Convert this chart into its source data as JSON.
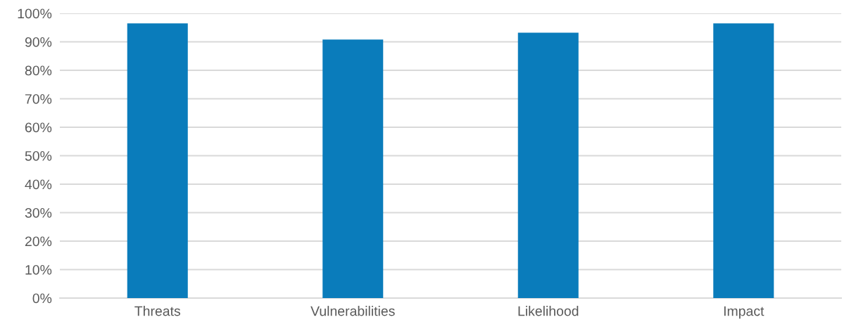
{
  "chart_data": {
    "type": "bar",
    "categories": [
      "Threats",
      "Vulnerabilities",
      "Likelihood",
      "Impact"
    ],
    "values": [
      96.5,
      90.8,
      93.2,
      96.5
    ],
    "color": "#0a7cbb",
    "ylim": [
      0,
      100
    ],
    "yticks": [
      {
        "value": 0,
        "label": "0%"
      },
      {
        "value": 10,
        "label": "10%"
      },
      {
        "value": 20,
        "label": "20%"
      },
      {
        "value": 30,
        "label": "30%"
      },
      {
        "value": 40,
        "label": "40%"
      },
      {
        "value": 50,
        "label": "50%"
      },
      {
        "value": 60,
        "label": "60%"
      },
      {
        "value": 70,
        "label": "70%"
      },
      {
        "value": 80,
        "label": "80%"
      },
      {
        "value": 90,
        "label": "90%"
      },
      {
        "value": 100,
        "label": "100%"
      }
    ],
    "grid": "y"
  }
}
